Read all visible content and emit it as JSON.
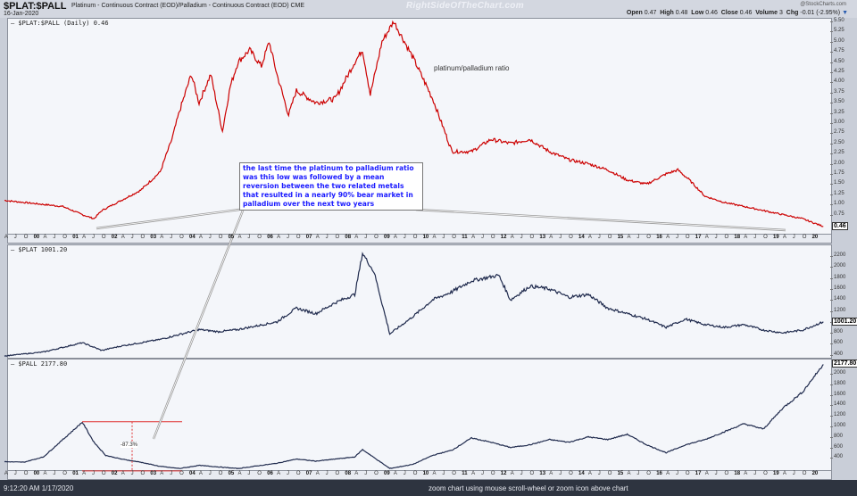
{
  "header": {
    "symbol": "$PLAT:$PALL",
    "description": "Platinum - Continuous Contract (EOD)/Palladium - Continuous Contract (EOD)  CME",
    "date": "16-Jan-2020",
    "watermark": "RightSideOfTheChart.com",
    "provider": "@StockCharts.com",
    "ohlc": {
      "open_label": "Open",
      "open": "0.47",
      "high_label": "High",
      "high": "0.48",
      "low_label": "Low",
      "low": "0.46",
      "close_label": "Close",
      "close": "0.46",
      "volume_label": "Volume",
      "volume": "3",
      "chg_label": "Chg",
      "chg": "-0.01 (-2.95%)",
      "chg_arrow": "▼"
    }
  },
  "panels": {
    "ratio": {
      "label": "— $PLAT:$PALL (Daily) 0.46",
      "last": "0.46",
      "annotation": "platinum/palladium ratio"
    },
    "plat": {
      "label": "— $PLAT 1001.20",
      "last": "1001.20"
    },
    "pall": {
      "label": "— $PALL 2177.80",
      "last": "2177.80",
      "drawdown": "-87.3%"
    }
  },
  "note": "the last time the platinum to palladium ratio was this low was followed by a mean reversion between the two related metals that resulted in a nearly 90% bear market in palladium over the next two years",
  "status": {
    "time": "9:12:20 AM 1/17/2020",
    "hint": "zoom chart using mouse scroll-wheel or zoom icon above chart"
  },
  "colors": {
    "ratio_line": "#cc0000",
    "price_line": "#1f2a4d",
    "annotation_text": "#1a1aff",
    "marker": "#e03030"
  },
  "chart_data": [
    {
      "type": "line",
      "title": "$PLAT:$PALL (Daily) 0.46",
      "ylabel": "ratio",
      "yticks": [
        "5.50",
        "5.25",
        "5.00",
        "4.75",
        "4.50",
        "4.25",
        "4.00",
        "3.75",
        "3.50",
        "3.25",
        "3.00",
        "2.75",
        "2.50",
        "2.25",
        "2.00",
        "1.75",
        "1.50",
        "1.25",
        "1.00",
        "0.75"
      ],
      "ylim": [
        0.4,
        5.6
      ],
      "x": [
        1999.0,
        1999.5,
        2000.0,
        2000.5,
        2001.0,
        2001.3,
        2001.5,
        2002.0,
        2002.5,
        2003.0,
        2003.3,
        2003.5,
        2003.8,
        2004.0,
        2004.3,
        2004.6,
        2004.8,
        2005.0,
        2005.3,
        2005.6,
        2005.8,
        2006.0,
        2006.3,
        2006.5,
        2007.0,
        2007.5,
        2008.0,
        2008.2,
        2008.4,
        2008.7,
        2009.0,
        2009.5,
        2010.0,
        2010.5,
        2011.0,
        2011.5,
        2012.0,
        2012.5,
        2013.0,
        2013.5,
        2014.0,
        2014.5,
        2015.0,
        2015.5,
        2016.0,
        2016.3,
        2016.6,
        2017.0,
        2017.5,
        2018.0,
        2018.5,
        2019.0,
        2019.5,
        2020.04
      ],
      "values": [
        1.1,
        1.05,
        1.0,
        0.95,
        0.75,
        0.65,
        0.85,
        1.1,
        1.35,
        1.8,
        2.6,
        3.3,
        4.2,
        3.5,
        4.2,
        2.8,
        3.9,
        4.5,
        4.8,
        4.4,
        5.0,
        4.2,
        3.2,
        3.8,
        3.5,
        3.6,
        4.5,
        4.8,
        3.7,
        5.0,
        5.5,
        4.6,
        3.6,
        2.3,
        2.3,
        2.6,
        2.5,
        2.6,
        2.3,
        2.1,
        2.0,
        1.85,
        1.6,
        1.5,
        1.75,
        1.85,
        1.6,
        1.2,
        1.05,
        0.95,
        0.85,
        0.75,
        0.65,
        0.46
      ]
    },
    {
      "type": "line",
      "title": "$PLAT 1001.20",
      "yticks": [
        "2200",
        "2000",
        "1800",
        "1600",
        "1400",
        "1200",
        "1000",
        "800",
        "600",
        "400"
      ],
      "ylim": [
        380,
        2300
      ],
      "x": [
        1999.0,
        2000.0,
        2001.0,
        2001.5,
        2002.0,
        2003.0,
        2004.0,
        2004.5,
        2005.0,
        2006.0,
        2006.5,
        2007.0,
        2007.5,
        2008.0,
        2008.2,
        2008.5,
        2008.9,
        2009.5,
        2010.0,
        2010.5,
        2011.0,
        2011.7,
        2012.0,
        2012.5,
        2013.0,
        2013.5,
        2014.0,
        2014.5,
        2015.0,
        2015.5,
        2016.0,
        2016.5,
        2017.0,
        2017.5,
        2018.0,
        2018.5,
        2019.0,
        2019.5,
        2020.04
      ],
      "values": [
        380,
        450,
        620,
        480,
        560,
        680,
        860,
        820,
        860,
        1000,
        1250,
        1150,
        1350,
        1500,
        2250,
        1900,
        780,
        1100,
        1400,
        1550,
        1750,
        1850,
        1400,
        1650,
        1600,
        1450,
        1500,
        1250,
        1150,
        1050,
        900,
        1050,
        950,
        900,
        950,
        850,
        800,
        850,
        1001
      ]
    },
    {
      "type": "line",
      "title": "$PALL 2177.80",
      "yticks": [
        "2000",
        "1800",
        "1600",
        "1400",
        "1200",
        "1000",
        "800",
        "600",
        "400",
        "200"
      ],
      "ylim": [
        150,
        2250
      ],
      "x": [
        1999.0,
        1999.5,
        2000.0,
        2000.5,
        2001.0,
        2001.3,
        2001.6,
        2002.0,
        2002.5,
        2003.0,
        2003.5,
        2004.0,
        2005.0,
        2006.0,
        2006.5,
        2007.0,
        2007.5,
        2008.0,
        2008.2,
        2008.9,
        2009.5,
        2010.0,
        2010.5,
        2011.0,
        2011.5,
        2012.0,
        2012.5,
        2013.0,
        2013.5,
        2014.0,
        2014.5,
        2015.0,
        2015.5,
        2016.0,
        2016.5,
        2017.0,
        2017.5,
        2018.0,
        2018.5,
        2019.0,
        2019.5,
        2020.04
      ],
      "values": [
        330,
        320,
        420,
        750,
        1080,
        700,
        450,
        380,
        320,
        240,
        200,
        260,
        200,
        300,
        380,
        340,
        380,
        420,
        560,
        200,
        280,
        450,
        550,
        780,
        700,
        600,
        650,
        750,
        700,
        800,
        750,
        850,
        650,
        500,
        650,
        750,
        900,
        1050,
        950,
        1350,
        1650,
        2178
      ],
      "annotation": {
        "peak": 1090,
        "trough": 155,
        "drawdown": "-87.3%"
      }
    }
  ],
  "xaxis": {
    "years": [
      "00",
      "01",
      "02",
      "03",
      "04",
      "05",
      "06",
      "07",
      "08",
      "09",
      "10",
      "11",
      "12",
      "13",
      "14",
      "15",
      "16",
      "17",
      "18",
      "19",
      "20"
    ],
    "months": [
      "A",
      "J",
      "O"
    ]
  }
}
